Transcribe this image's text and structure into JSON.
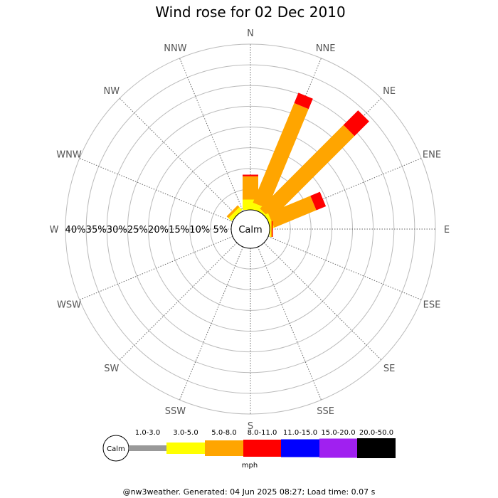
{
  "chart_data": {
    "type": "wind_rose",
    "title": "Wind rose for 02 Dec 2010",
    "directions": [
      "N",
      "NNE",
      "NE",
      "ENE",
      "E",
      "ESE",
      "SE",
      "SSE",
      "S",
      "SSW",
      "SW",
      "WSW",
      "W",
      "WNW",
      "NW",
      "NNW"
    ],
    "radial_labels": [
      "5%",
      "10%",
      "15%",
      "20%",
      "25%",
      "30%",
      "35%",
      "40%"
    ],
    "radial_max": 40,
    "calm_label": "Calm",
    "speed_bins": [
      {
        "label": "1.0-3.0",
        "color": "#999999"
      },
      {
        "label": "3.0-5.0",
        "color": "#ffff00"
      },
      {
        "label": "5.0-8.0",
        "color": "#ffa500"
      },
      {
        "label": "8.0-11.0",
        "color": "#ff0000"
      },
      {
        "label": "11.0-15.0",
        "color": "#0000ff"
      },
      {
        "label": "15.0-20.0",
        "color": "#a020f0"
      },
      {
        "label": "20.0-50.0",
        "color": "#000000"
      }
    ],
    "series": [
      {
        "bin": "1.0-3.0",
        "values": [
          0,
          0,
          0,
          0,
          0,
          0,
          0,
          0,
          0,
          0,
          0,
          0,
          0,
          0,
          0,
          0
        ]
      },
      {
        "bin": "3.0-5.0",
        "values": [
          2.5,
          1.5,
          0.5,
          0.8,
          0.3,
          0,
          0,
          0,
          0,
          0,
          0,
          0,
          0,
          0,
          1.0,
          0
        ]
      },
      {
        "bin": "5.0-8.0",
        "values": [
          5.6,
          26.0,
          28.5,
          11.0,
          0.3,
          0,
          0,
          0,
          0,
          0,
          0,
          0,
          0,
          0,
          0.6,
          0
        ]
      },
      {
        "bin": "8.0-11.0",
        "values": [
          0.4,
          2.7,
          5.0,
          2.5,
          0.2,
          0,
          0,
          0,
          0,
          0,
          0,
          0,
          0,
          0,
          0,
          0
        ]
      },
      {
        "bin": "11.0-15.0",
        "values": [
          0,
          0,
          0,
          0,
          0,
          0,
          0,
          0,
          0,
          0,
          0,
          0,
          0,
          0,
          0,
          0
        ]
      },
      {
        "bin": "15.0-20.0",
        "values": [
          0,
          0,
          0,
          0,
          0,
          0,
          0,
          0,
          0,
          0,
          0,
          0,
          0,
          0,
          0,
          0
        ]
      },
      {
        "bin": "20.0-50.0",
        "values": [
          0,
          0,
          0,
          0,
          0,
          0,
          0,
          0,
          0,
          0,
          0,
          0,
          0,
          0,
          0,
          0
        ]
      }
    ],
    "units": "mph",
    "grid": true
  },
  "footer": "@nw3weather. Generated: 04 Jun 2025 08:27; Load time: 0.07 s"
}
